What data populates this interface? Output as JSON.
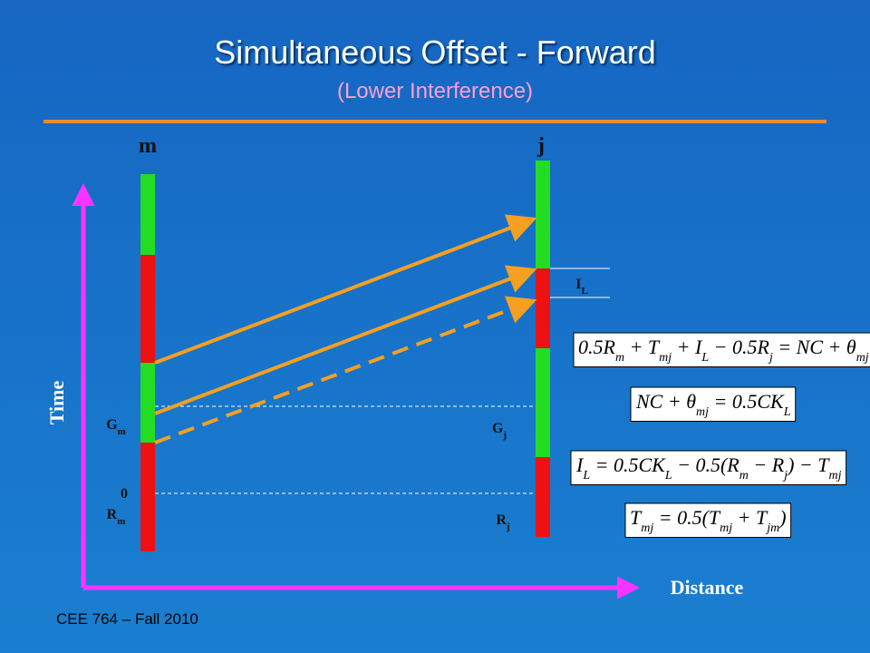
{
  "title": "Simultaneous Offset - Forward",
  "subtitle": "(Lower Interference)",
  "labels": {
    "intersection_m": "m",
    "intersection_j": "j",
    "y_axis": "Time",
    "x_axis": "Distance",
    "zero": "0"
  },
  "marks": [
    {
      "base": "G",
      "sub": "m"
    },
    {
      "base": "R",
      "sub": "m"
    },
    {
      "base": "G",
      "sub": "j"
    },
    {
      "base": "R",
      "sub": "j"
    },
    {
      "base": "I",
      "sub": "L"
    }
  ],
  "equations": [
    [
      {
        "t": "0.5R"
      },
      {
        "sub": "m"
      },
      {
        "t": " + T"
      },
      {
        "sub": "mj"
      },
      {
        "t": " + I"
      },
      {
        "sub": "L"
      },
      {
        "t": " − 0.5R"
      },
      {
        "sub": "j"
      },
      {
        "t": " = NC + θ"
      },
      {
        "sub": "mj"
      }
    ],
    [
      {
        "t": "NC + θ"
      },
      {
        "sub": "mj"
      },
      {
        "t": " = 0.5CK"
      },
      {
        "sub": "L"
      }
    ],
    [
      {
        "t": "I"
      },
      {
        "sub": "L"
      },
      {
        "t": " = 0.5CK"
      },
      {
        "sub": "L"
      },
      {
        "t": " − 0.5(R"
      },
      {
        "sub": "m"
      },
      {
        "t": " − R"
      },
      {
        "sub": "j"
      },
      {
        "t": ") − T"
      },
      {
        "sub": "mj"
      }
    ],
    [
      {
        "t": "T"
      },
      {
        "sub": "mj"
      },
      {
        "t": " = 0.5(T"
      },
      {
        "sub": "mj"
      },
      {
        "t": " + T"
      },
      {
        "sub": "jm"
      },
      {
        "t": ")"
      }
    ]
  ],
  "footer": "CEE 764 – Fall 2010"
}
